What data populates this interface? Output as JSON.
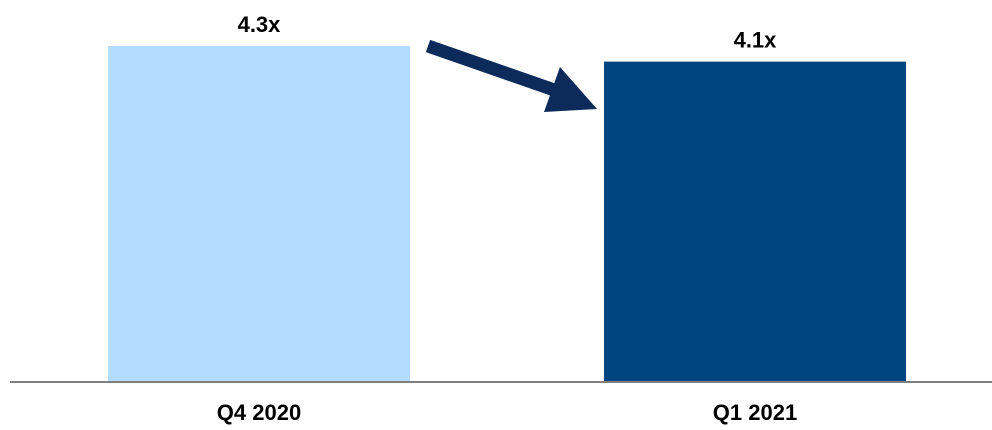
{
  "chart_data": {
    "type": "bar",
    "categories": [
      "Q4 2020",
      "Q1 2021"
    ],
    "values": [
      4.3,
      4.1
    ],
    "data_labels": [
      "4.3x",
      "4.1x"
    ],
    "title": "",
    "xlabel": "",
    "ylabel": "",
    "ylim": [
      0,
      4.3
    ],
    "grid": false,
    "legend": "none",
    "bar_colors": [
      "#b4dcff",
      "#00457f"
    ],
    "axis_color": "#7f7f7f",
    "arrow_color": "#0c2a5a",
    "annotations": [
      {
        "type": "arrow",
        "from_category": "Q4 2020",
        "to_category": "Q1 2021",
        "direction": "down-right"
      }
    ]
  }
}
